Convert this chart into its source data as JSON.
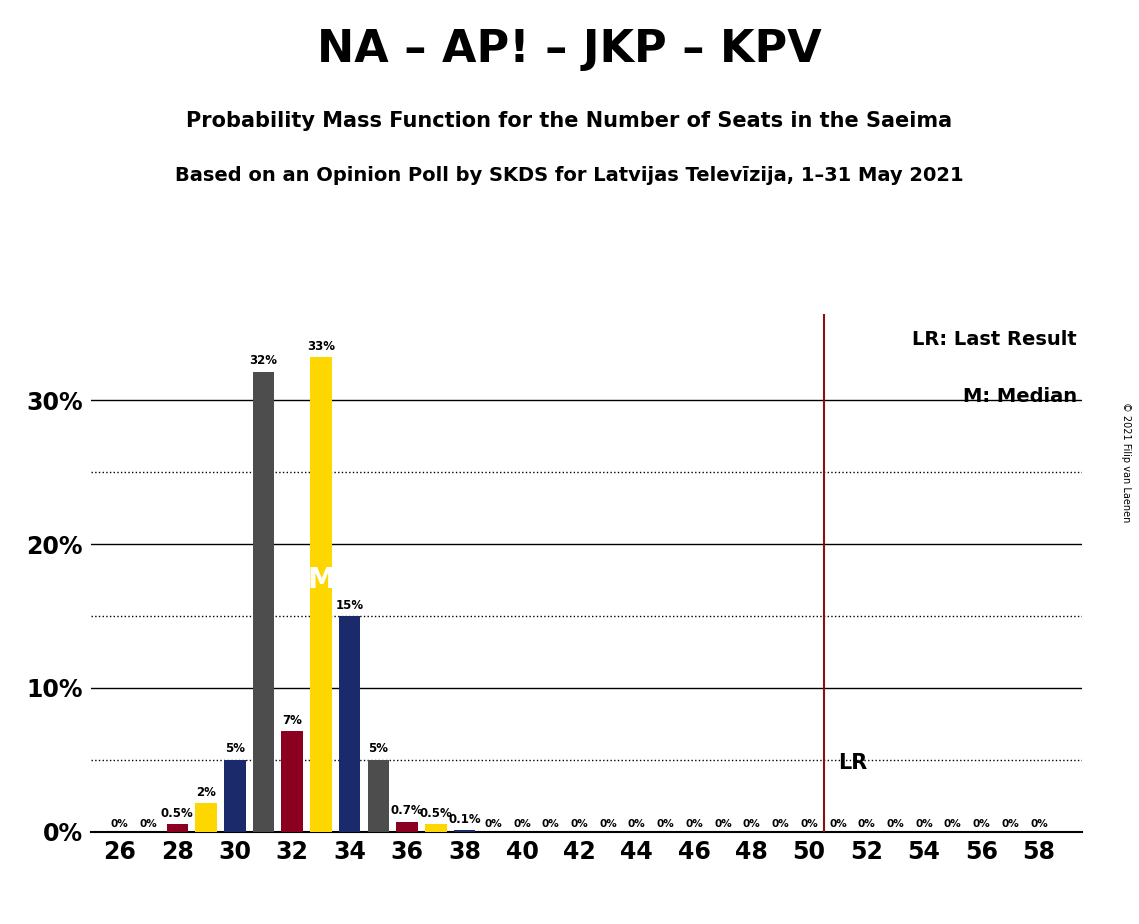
{
  "title": "NA – AP! – JKP – KPV",
  "subtitle1": "Probability Mass Function for the Number of Seats in the Saeima",
  "subtitle2": "Based on an Opinion Poll by SKDS for Latvijas Televīzija, 1–31 May 2021",
  "copyright": "© 2021 Filip van Laenen",
  "lr_line": 50.5,
  "median_x": 33,
  "median_y": 17.5,
  "legend_lr": "LR: Last Result",
  "legend_m": "M: Median",
  "lr_label": "LR",
  "bars": [
    {
      "seat": 26,
      "value": 0.0,
      "color": "#4d4d4d"
    },
    {
      "seat": 27,
      "value": 0.0,
      "color": "#4d4d4d"
    },
    {
      "seat": 28,
      "value": 0.5,
      "color": "#8B0020"
    },
    {
      "seat": 29,
      "value": 2.0,
      "color": "#FFD700"
    },
    {
      "seat": 30,
      "value": 5.0,
      "color": "#1B2A6B"
    },
    {
      "seat": 31,
      "value": 32.0,
      "color": "#4d4d4d"
    },
    {
      "seat": 32,
      "value": 7.0,
      "color": "#8B0020"
    },
    {
      "seat": 33,
      "value": 33.0,
      "color": "#FFD700"
    },
    {
      "seat": 34,
      "value": 15.0,
      "color": "#1B2A6B"
    },
    {
      "seat": 35,
      "value": 5.0,
      "color": "#4d4d4d"
    },
    {
      "seat": 36,
      "value": 0.7,
      "color": "#8B0020"
    },
    {
      "seat": 37,
      "value": 0.5,
      "color": "#FFD700"
    },
    {
      "seat": 38,
      "value": 0.1,
      "color": "#1B2A6B"
    },
    {
      "seat": 39,
      "value": 0.0,
      "color": "#4d4d4d"
    },
    {
      "seat": 40,
      "value": 0.0,
      "color": "#4d4d4d"
    },
    {
      "seat": 41,
      "value": 0.0,
      "color": "#4d4d4d"
    },
    {
      "seat": 42,
      "value": 0.0,
      "color": "#4d4d4d"
    },
    {
      "seat": 43,
      "value": 0.0,
      "color": "#4d4d4d"
    },
    {
      "seat": 44,
      "value": 0.0,
      "color": "#4d4d4d"
    },
    {
      "seat": 45,
      "value": 0.0,
      "color": "#4d4d4d"
    },
    {
      "seat": 46,
      "value": 0.0,
      "color": "#4d4d4d"
    },
    {
      "seat": 47,
      "value": 0.0,
      "color": "#4d4d4d"
    },
    {
      "seat": 48,
      "value": 0.0,
      "color": "#4d4d4d"
    },
    {
      "seat": 49,
      "value": 0.0,
      "color": "#4d4d4d"
    },
    {
      "seat": 50,
      "value": 0.0,
      "color": "#4d4d4d"
    },
    {
      "seat": 51,
      "value": 0.0,
      "color": "#4d4d4d"
    },
    {
      "seat": 52,
      "value": 0.0,
      "color": "#4d4d4d"
    },
    {
      "seat": 53,
      "value": 0.0,
      "color": "#4d4d4d"
    },
    {
      "seat": 54,
      "value": 0.0,
      "color": "#4d4d4d"
    },
    {
      "seat": 55,
      "value": 0.0,
      "color": "#4d4d4d"
    },
    {
      "seat": 56,
      "value": 0.0,
      "color": "#4d4d4d"
    },
    {
      "seat": 57,
      "value": 0.0,
      "color": "#4d4d4d"
    },
    {
      "seat": 58,
      "value": 0.0,
      "color": "#4d4d4d"
    }
  ],
  "xlim": [
    25.0,
    59.5
  ],
  "ylim": [
    0,
    36
  ],
  "xticks": [
    26,
    28,
    30,
    32,
    34,
    36,
    38,
    40,
    42,
    44,
    46,
    48,
    50,
    52,
    54,
    56,
    58
  ],
  "yticks": [
    0,
    10,
    20,
    30
  ],
  "ytick_labels": [
    "0%",
    "10%",
    "20%",
    "30%"
  ],
  "solid_lines": [
    0,
    10,
    20,
    30
  ],
  "dotted_lines": [
    5,
    15,
    25
  ],
  "background_color": "#FFFFFF",
  "bar_width": 0.75
}
